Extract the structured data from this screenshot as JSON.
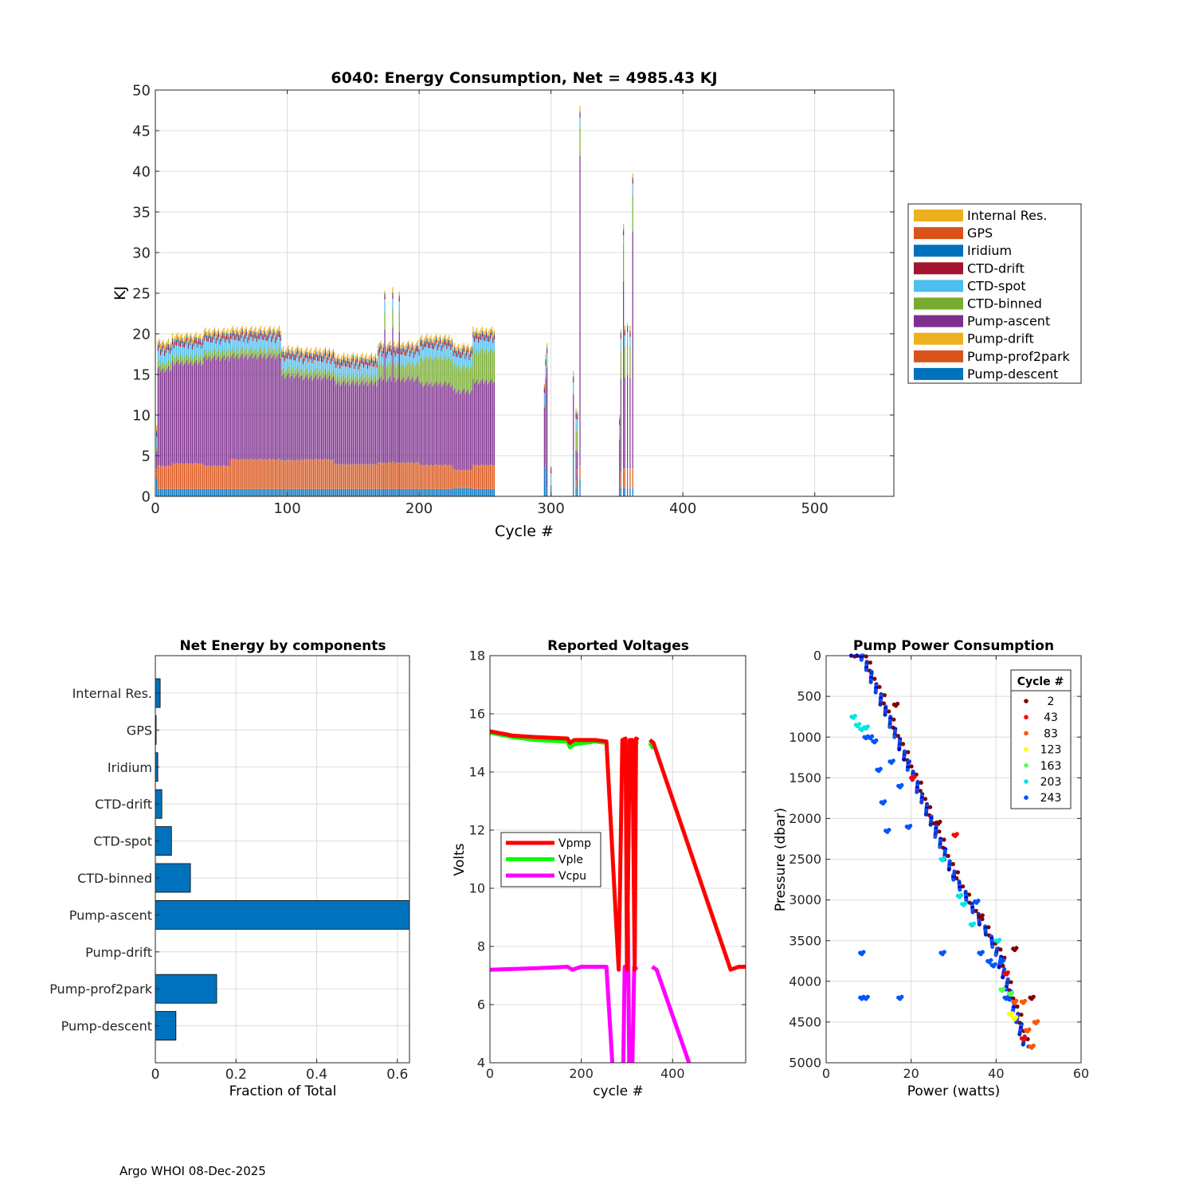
{
  "footer": "Argo WHOI 08-Dec-2025",
  "colors": {
    "Internal Res.": "#EDB120",
    "GPS": "#D95319",
    "Iridium": "#0072BD",
    "CTD-drift": "#A2142F",
    "CTD-spot": "#4DBEEE",
    "CTD-binned": "#77AC30",
    "Pump-ascent": "#7E2F8E",
    "Pump-drift": "#EDB120",
    "Pump-prof2park": "#D95319",
    "Pump-descent": "#0072BD"
  },
  "chart_data": [
    {
      "id": "energy",
      "type": "bar",
      "stacked": true,
      "title": "6040: Energy Consumption,  Net = 4985.43 KJ",
      "xlabel": "Cycle #",
      "ylabel": "KJ",
      "xlim": [
        0,
        560
      ],
      "ylim": [
        0,
        50
      ],
      "xticks": [
        0,
        100,
        200,
        300,
        400,
        500
      ],
      "yticks": [
        0,
        5,
        10,
        15,
        20,
        25,
        30,
        35,
        40,
        45,
        50
      ],
      "grid": true,
      "legend_position": "outside-right",
      "legend": [
        "Internal Res.",
        "GPS",
        "Iridium",
        "CTD-drift",
        "CTD-spot",
        "CTD-binned",
        "Pump-ascent",
        "Pump-drift",
        "Pump-prof2park",
        "Pump-descent"
      ],
      "stack_order": [
        "Pump-descent",
        "Pump-prof2park",
        "Pump-drift",
        "Pump-ascent",
        "CTD-binned",
        "CTD-spot",
        "CTD-drift",
        "Iridium",
        "GPS",
        "Internal Res."
      ],
      "segments": [
        {
          "from": 1,
          "to": 1,
          "total": 8.8,
          "descent": 2.2,
          "prof2park": 1.2,
          "binned": 0.6
        },
        {
          "from": 2,
          "to": 12,
          "total": 19.0,
          "descent": 0.9,
          "prof2park": 2.8,
          "binned": 0.8
        },
        {
          "from": 13,
          "to": 36,
          "total": 19.8,
          "descent": 0.9,
          "prof2park": 3.1,
          "binned": 0.8
        },
        {
          "from": 37,
          "to": 56,
          "total": 20.4,
          "descent": 0.9,
          "prof2park": 2.8,
          "binned": 0.8
        },
        {
          "from": 57,
          "to": 95,
          "total": 20.6,
          "descent": 0.9,
          "prof2park": 3.6,
          "binned": 0.8
        },
        {
          "from": 96,
          "to": 110,
          "total": 18.2,
          "descent": 0.9,
          "prof2park": 3.5,
          "binned": 0.8
        },
        {
          "from": 111,
          "to": 135,
          "total": 18.0,
          "descent": 0.9,
          "prof2park": 3.6,
          "binned": 0.8
        },
        {
          "from": 136,
          "to": 168,
          "total": 17.3,
          "descent": 0.9,
          "prof2park": 3.0,
          "binned": 0.8
        },
        {
          "from": 169,
          "to": 200,
          "total": 18.8,
          "descent": 0.9,
          "prof2park": 3.2,
          "binned": 1.8
        },
        {
          "from": 201,
          "to": 225,
          "total": 19.6,
          "descent": 0.9,
          "prof2park": 2.9,
          "binned": 3.2
        },
        {
          "from": 226,
          "to": 240,
          "total": 18.5,
          "descent": 1.0,
          "prof2park": 2.2,
          "binned": 3.0
        },
        {
          "from": 241,
          "to": 257,
          "total": 20.5,
          "descent": 0.9,
          "prof2park": 2.9,
          "binned": 3.8
        }
      ],
      "bars": [
        {
          "cycle": 174,
          "total": 25.3,
          "descent": 0.9,
          "prof2park": 3.2,
          "binned": 2.2
        },
        {
          "cycle": 180,
          "total": 25.7,
          "descent": 0.9,
          "prof2park": 3.4,
          "binned": 2.3
        },
        {
          "cycle": 185,
          "total": 25.2,
          "descent": 0.9,
          "prof2park": 3.2,
          "binned": 2.4
        },
        {
          "cycle": 295,
          "total": 13.8,
          "descent": 3.5,
          "prof2park": 0.0,
          "binned": 0.3
        },
        {
          "cycle": 296,
          "total": 17.5,
          "descent": 3.9,
          "prof2park": 0.0,
          "binned": 0.4
        },
        {
          "cycle": 297,
          "total": 18.8,
          "descent": 1.0,
          "prof2park": 0.0,
          "binned": 0.4
        },
        {
          "cycle": 300,
          "total": 1.0,
          "descent": 1.0,
          "prof2park": 0.0,
          "binned": 0.0
        },
        {
          "cycle": 317,
          "total": 15.4,
          "descent": 5.5,
          "prof2park": 0.0,
          "binned": 0.3
        },
        {
          "cycle": 319,
          "total": 10.8,
          "descent": 1.0,
          "prof2park": 1.0,
          "binned": 2.5
        },
        {
          "cycle": 320,
          "total": 10.5,
          "descent": 2.5,
          "prof2park": 0.8,
          "binned": 2.5
        },
        {
          "cycle": 322,
          "total": 48.0,
          "descent": 2.0,
          "prof2park": 1.8,
          "binned": 3.5
        },
        {
          "cycle": 352,
          "total": 10.0,
          "descent": 2.0,
          "prof2park": 0.0,
          "binned": 0.5
        },
        {
          "cycle": 353,
          "total": 20.5,
          "descent": 1.0,
          "prof2park": 2.0,
          "binned": 3.5
        },
        {
          "cycle": 355,
          "total": 33.5,
          "descent": 1.0,
          "prof2park": 2.4,
          "binned": 4.5
        },
        {
          "cycle": 356,
          "total": 21.0,
          "descent": 1.0,
          "prof2park": 2.4,
          "binned": 3.8
        },
        {
          "cycle": 358,
          "total": 21.3,
          "descent": 1.0,
          "prof2park": 2.4,
          "binned": 3.8
        },
        {
          "cycle": 360,
          "total": 21.0,
          "descent": 1.0,
          "prof2park": 2.4,
          "binned": 3.8
        },
        {
          "cycle": 362,
          "total": 39.7,
          "descent": 1.0,
          "prof2park": 2.4,
          "binned": 4.5
        }
      ]
    },
    {
      "id": "components",
      "type": "bar",
      "orientation": "horizontal",
      "title": "Net Energy by components",
      "xlabel": "Fraction of Total",
      "xlim": [
        0,
        0.63
      ],
      "xticks": [
        0,
        0.2,
        0.4,
        0.6
      ],
      "xtick_labels": [
        "0",
        "0.2",
        "0.4",
        "0.6"
      ],
      "grid": true,
      "categories": [
        "Internal Res.",
        "GPS",
        "Iridium",
        "CTD-drift",
        "CTD-spot",
        "CTD-binned",
        "Pump-ascent",
        "Pump-drift",
        "Pump-prof2park",
        "Pump-descent"
      ],
      "values": [
        0.012,
        0.002,
        0.006,
        0.016,
        0.04,
        0.087,
        0.63,
        0.0,
        0.152,
        0.051
      ]
    },
    {
      "id": "voltages",
      "type": "line",
      "title": "Reported Voltages",
      "xlabel": "cycle #",
      "ylabel": "Volts",
      "xlim": [
        0,
        560
      ],
      "ylim": [
        4,
        18
      ],
      "xticks": [
        0,
        200,
        400
      ],
      "yticks": [
        4,
        6,
        8,
        10,
        12,
        14,
        16,
        18
      ],
      "grid": true,
      "legend_position": "middle-left",
      "series": [
        {
          "name": "Vpmp",
          "color": "#FF0000",
          "points": [
            [
              0,
              15.4
            ],
            [
              50,
              15.25
            ],
            [
              100,
              15.2
            ],
            [
              170,
              15.15
            ],
            [
              175,
              15.0
            ],
            [
              185,
              15.1
            ],
            [
              230,
              15.1
            ],
            [
              255,
              15.05
            ],
            [
              282,
              7.2
            ],
            [
              290,
              15.1
            ],
            [
              297,
              15.15
            ],
            [
              300,
              7.2
            ],
            [
              306,
              15.1
            ],
            [
              312,
              15.1
            ],
            [
              317,
              7.2
            ],
            [
              320,
              15.15
            ],
            [
              325,
              15.1
            ]
          ],
          "extra": [
            [
              [
                350,
                15.1
              ],
              [
                358,
                15.0
              ],
              [
                527,
                7.2
              ],
              [
                545,
                7.3
              ],
              [
                560,
                7.3
              ]
            ]
          ]
        },
        {
          "name": "Vple",
          "color": "#00FF00",
          "points": [
            [
              0,
              15.35
            ],
            [
              50,
              15.2
            ],
            [
              100,
              15.1
            ],
            [
              170,
              15.05
            ],
            [
              175,
              14.85
            ],
            [
              185,
              14.95
            ],
            [
              230,
              15.05
            ],
            [
              255,
              15.0
            ]
          ],
          "extra": [
            [
              [
                290,
                15.0
              ],
              [
                297,
                15.05
              ]
            ],
            [
              [
                312,
                15.0
              ],
              [
                325,
                15.05
              ]
            ],
            [
              [
                350,
                15.0
              ],
              [
                358,
                14.8
              ]
            ]
          ]
        },
        {
          "name": "Vcpu",
          "color": "#FF00FF",
          "points": [
            [
              0,
              7.2
            ],
            [
              100,
              7.25
            ],
            [
              170,
              7.3
            ],
            [
              180,
              7.2
            ],
            [
              200,
              7.3
            ],
            [
              255,
              7.3
            ],
            [
              268,
              4.0
            ]
          ],
          "extra": [
            [
              [
                292,
                4.0
              ],
              [
                295,
                7.3
              ],
              [
                300,
                7.3
              ],
              [
                302,
                9.2
              ],
              [
                305,
                4.0
              ]
            ],
            [
              [
                312,
                4.0
              ],
              [
                316,
                7.3
              ],
              [
                322,
                7.2
              ]
            ],
            [
              [
                355,
                7.3
              ],
              [
                365,
                7.2
              ],
              [
                436,
                4.0
              ]
            ]
          ]
        }
      ]
    },
    {
      "id": "pump",
      "type": "scatter",
      "title": "Pump Power Consumption",
      "xlabel": "Power (watts)",
      "ylabel": "Pressure (dbar)",
      "xlim": [
        0,
        60
      ],
      "ylim": [
        0,
        5000
      ],
      "y_reversed": true,
      "xticks": [
        0,
        20,
        40,
        60
      ],
      "yticks": [
        0,
        500,
        1000,
        1500,
        2000,
        2500,
        3000,
        3500,
        4000,
        4500,
        5000
      ],
      "grid": true,
      "legend_title": "Cycle #",
      "legend_position": "top-right",
      "legend": [
        {
          "label": "2",
          "color": "#800000"
        },
        {
          "label": "43",
          "color": "#FF0000"
        },
        {
          "label": "83",
          "color": "#FF5500"
        },
        {
          "label": "123",
          "color": "#FFFF00"
        },
        {
          "label": "163",
          "color": "#55FF55"
        },
        {
          "label": "203",
          "color": "#00E5E5"
        },
        {
          "label": "243",
          "color": "#0055FF"
        }
      ],
      "main_trend": [
        [
          6.5,
          0
        ],
        [
          8.5,
          0
        ],
        [
          19,
          1300
        ],
        [
          30,
          2700
        ],
        [
          40,
          3600
        ],
        [
          47,
          4800
        ]
      ],
      "clusters": [
        {
          "color": "#00E5E5",
          "points": [
            [
              6,
              750
            ],
            [
              7,
              850
            ],
            [
              8,
              900
            ],
            [
              9,
              880
            ],
            [
              27,
              2500
            ],
            [
              31,
              2950
            ],
            [
              32,
              3050
            ],
            [
              34,
              3300
            ],
            [
              40,
              3500
            ]
          ]
        },
        {
          "color": "#0055FF",
          "points": [
            [
              9,
              1000
            ],
            [
              10,
              1000
            ],
            [
              11,
              1050
            ],
            [
              12,
              1400
            ],
            [
              13,
              1800
            ],
            [
              14,
              2150
            ],
            [
              15,
              1300
            ],
            [
              17,
              1600
            ],
            [
              19,
              2100
            ],
            [
              8,
              3650
            ],
            [
              27,
              3650
            ],
            [
              36,
              3650
            ],
            [
              8,
              4200
            ],
            [
              9,
              4200
            ],
            [
              17,
              4200
            ],
            [
              38,
              3750
            ],
            [
              41,
              3750
            ],
            [
              42,
              4200
            ],
            [
              39,
              3800
            ],
            [
              35,
              3020
            ]
          ]
        },
        {
          "color": "#FF5500",
          "points": [
            [
              44,
              4250
            ],
            [
              46,
              4250
            ],
            [
              47,
              4600
            ],
            [
              48,
              4800
            ],
            [
              49,
              4500
            ]
          ]
        },
        {
          "color": "#FF0000",
          "points": [
            [
              20,
              1500
            ],
            [
              30,
              2200
            ],
            [
              42,
              3900
            ],
            [
              46,
              4700
            ]
          ]
        },
        {
          "color": "#800000",
          "points": [
            [
              16,
              600
            ],
            [
              26,
              2050
            ],
            [
              36,
              3200
            ],
            [
              44,
              3600
            ],
            [
              48,
              4200
            ]
          ]
        },
        {
          "color": "#FFFF00",
          "points": [
            [
              43,
              4400
            ],
            [
              44,
              4450
            ]
          ]
        },
        {
          "color": "#55FF55",
          "points": [
            [
              41,
              4100
            ],
            [
              43,
              4150
            ]
          ]
        }
      ]
    }
  ]
}
